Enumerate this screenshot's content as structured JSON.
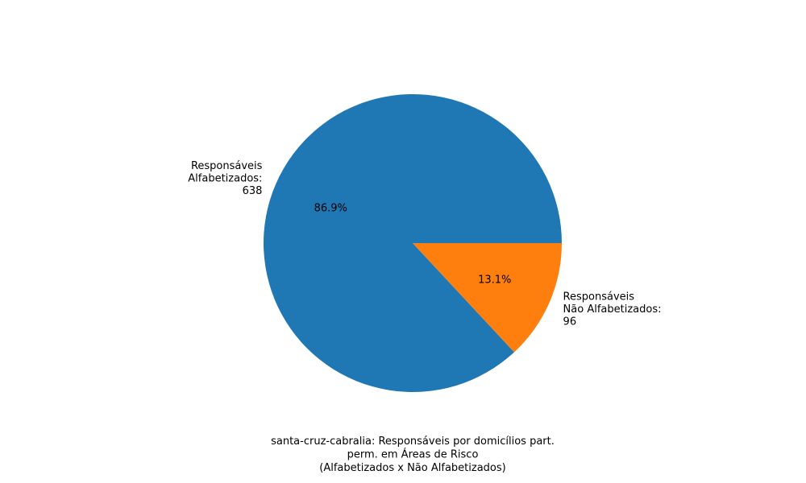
{
  "chart_data": {
    "type": "pie",
    "categories": [
      "Responsáveis Alfabetizados",
      "Responsáveis Não Alfabetizados"
    ],
    "values": [
      638,
      96
    ],
    "percent_labels": [
      "86.9%",
      "13.1%"
    ],
    "slice_labels": [
      [
        "Responsáveis",
        "Alfabetizados:",
        "638"
      ],
      [
        "Responsáveis",
        "Não Alfabetizados:",
        "96"
      ]
    ],
    "colors": [
      "#1f77b4",
      "#ff7f0e"
    ],
    "start_angle_deg": 0,
    "direction": "counterclockwise",
    "title_lines": [
      "santa-cruz-cabralia: Responsáveis por domicílios part.",
      "perm. em Áreas de Risco",
      "(Alfabetizados x Não Alfabetizados)"
    ]
  }
}
